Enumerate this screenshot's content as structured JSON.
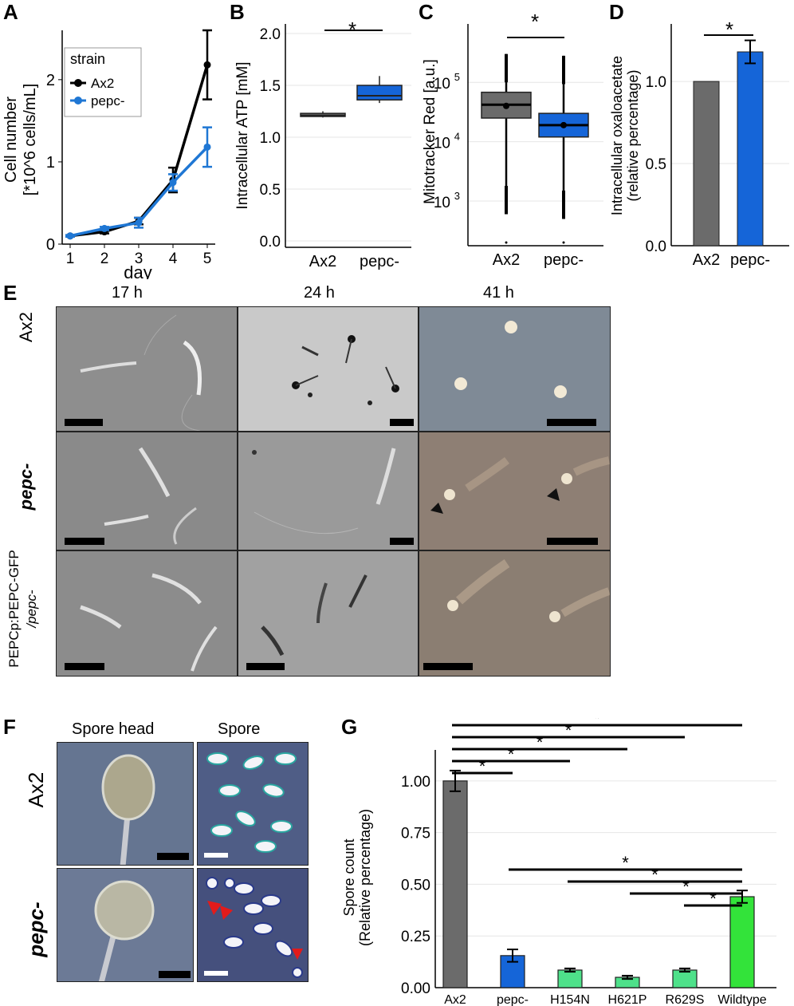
{
  "panel_letters": {
    "A": "A",
    "B": "B",
    "C": "C",
    "D": "D",
    "E": "E",
    "F": "F",
    "G": "G"
  },
  "colors": {
    "ax2": "#000000",
    "pepc_line": "#1f77d4",
    "gray_bar": "#6b6b6b",
    "blue_bar": "#1565d8",
    "mutant_bar": "#4ee18a",
    "wildtype_bar": "#33e33a",
    "grid": "#e6e6e6",
    "scalebar": "#000000",
    "arrow_red": "#e21b1b"
  },
  "chart_data": [
    {
      "id": "A",
      "type": "line",
      "xlabel": "day",
      "ylabel": "Cell number",
      "ylabel2": "[*10^6 cells/mL]",
      "x": [
        1,
        2,
        3,
        4,
        5
      ],
      "xlim": [
        1,
        5
      ],
      "ylim": [
        0,
        2.6
      ],
      "xticks": [
        "1",
        "2",
        "3",
        "4",
        "5"
      ],
      "yticks": [
        0,
        1,
        2
      ],
      "ytick_labels": [
        "0",
        "1",
        "2"
      ],
      "legend_title": "strain",
      "series": [
        {
          "name": "Ax2",
          "values": [
            0.1,
            0.15,
            0.28,
            0.78,
            2.18
          ],
          "err": [
            0.01,
            0.02,
            0.04,
            0.15,
            0.42
          ]
        },
        {
          "name": "pepc-",
          "values": [
            0.1,
            0.19,
            0.26,
            0.75,
            1.18
          ],
          "err": [
            0.01,
            0.02,
            0.06,
            0.1,
            0.24
          ]
        }
      ]
    },
    {
      "id": "B",
      "type": "box",
      "ylabel": "Intracellular ATP [mM]",
      "categories": [
        "Ax2",
        "pepc-"
      ],
      "ylim": [
        0,
        2.0
      ],
      "ytick_labels": [
        "0.0",
        "0.5",
        "1.0",
        "1.5",
        "2.0"
      ],
      "boxes": [
        {
          "q1": 1.2,
          "median": 1.21,
          "q3": 1.23,
          "min": 1.19,
          "max": 1.25
        },
        {
          "q1": 1.36,
          "median": 1.4,
          "q3": 1.5,
          "min": 1.33,
          "max": 1.59
        }
      ],
      "significance": "*"
    },
    {
      "id": "C",
      "type": "box",
      "ylabel": "Mitotracker Red [a.u.]",
      "scale": "log",
      "categories": [
        "Ax2",
        "pepc-"
      ],
      "ytick_base": "10",
      "ytick_exps": [
        "3",
        "4",
        "5"
      ],
      "boxes": [
        {
          "q1": 25000,
          "median": 42000,
          "mean": 40000,
          "q3": 68000,
          "min": 600,
          "max": 300000,
          "outlier_low": 200
        },
        {
          "q1": 12000,
          "median": 19000,
          "mean": 19000,
          "q3": 30000,
          "min": 500,
          "max": 280000,
          "outlier_low": 200
        }
      ],
      "significance": "*"
    },
    {
      "id": "D",
      "type": "bar",
      "ylabel": "Intracellular oxaloacetate",
      "ylabel2": "(relative percentage)",
      "categories": [
        "Ax2",
        "pepc-"
      ],
      "values": [
        1.0,
        1.18
      ],
      "err": [
        0,
        0.07
      ],
      "ylim": [
        0,
        1.35
      ],
      "ytick_labels": [
        "0.0",
        "0.5",
        "1.0"
      ],
      "significance": "*"
    },
    {
      "id": "G",
      "type": "bar",
      "ylabel": "Spore count",
      "ylabel2": "(Relative percentage)",
      "categories": [
        "Ax2",
        "pepc-",
        "H154N",
        "H621P",
        "R629S",
        "Wildtype"
      ],
      "values": [
        1.0,
        0.155,
        0.085,
        0.05,
        0.085,
        0.44
      ],
      "err": [
        0.05,
        0.03,
        0.008,
        0.008,
        0.008,
        0.03
      ],
      "ylim": [
        0,
        1.15
      ],
      "ytick_labels": [
        "0.00",
        "0.25",
        "0.50",
        "0.75",
        "1.00"
      ],
      "significance": "*"
    }
  ],
  "panel_E": {
    "col_titles": [
      "17 h",
      "24 h",
      "41 h"
    ],
    "row_labels": [
      "Ax2",
      "pepc-"
    ],
    "row3_label": "PEPCp:PEPC-GFP",
    "row3_label2": "/pepc-"
  },
  "panel_F": {
    "col_titles": [
      "Spore head",
      "Spore"
    ],
    "row_labels": [
      "Ax2",
      "pepc-"
    ]
  }
}
